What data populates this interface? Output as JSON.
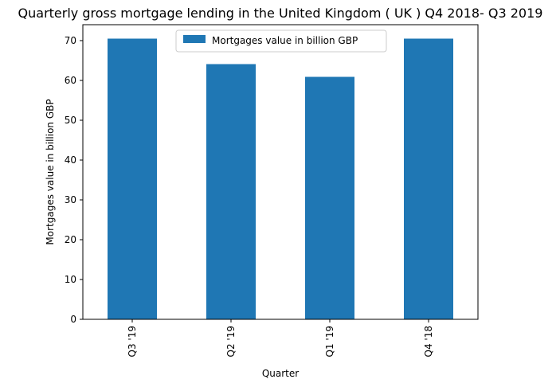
{
  "chart_data": {
    "type": "bar",
    "title": "Quarterly gross mortgage lending in the United Kingdom ( UK ) Q4 2018- Q3 2019",
    "xlabel": "Quarter",
    "ylabel": "Mortgages value in billion GBP",
    "categories": [
      "Q3 '19",
      "Q2 '19",
      "Q1 '19",
      "Q4 '18"
    ],
    "series": [
      {
        "name": "Mortgages value in billion GBP",
        "values": [
          70.5,
          64.1,
          60.9,
          70.5
        ],
        "color": "#1f77b4"
      }
    ],
    "ylim": [
      0,
      74
    ],
    "yticks": [
      0,
      10,
      20,
      30,
      40,
      50,
      60,
      70
    ],
    "grid": false,
    "legend_position": "top-center"
  }
}
